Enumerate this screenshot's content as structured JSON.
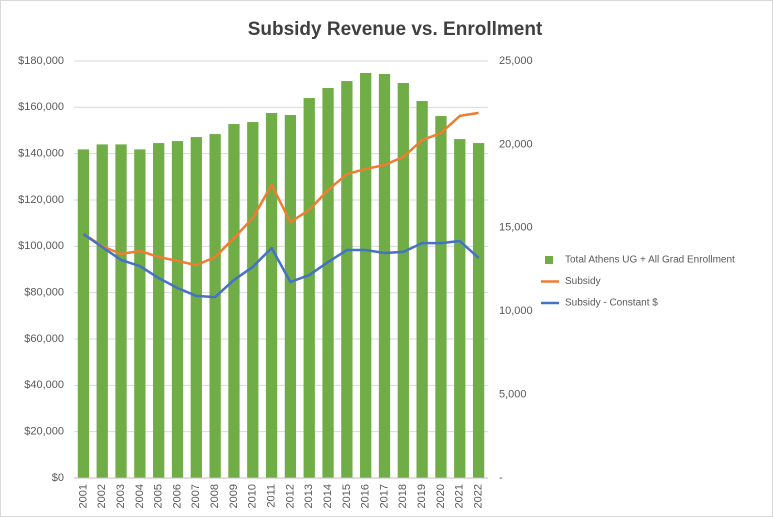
{
  "chart_data": {
    "type": "combo",
    "title": "Subsidy Revenue vs. Enrollment",
    "categories": [
      "2001",
      "2002",
      "2003",
      "2004",
      "2005",
      "2006",
      "2007",
      "2008",
      "2009",
      "2010",
      "2011",
      "2012",
      "2013",
      "2014",
      "2015",
      "2016",
      "2017",
      "2018",
      "2019",
      "2020",
      "2021",
      "2022"
    ],
    "series": [
      {
        "name": "Total Athens UG + All Grad Enrollment",
        "type": "bar",
        "axis": "y2",
        "color": "#70ad47",
        "values": [
          19700,
          20000,
          20000,
          19700,
          20080,
          20200,
          20440,
          20620,
          21220,
          21340,
          21880,
          21760,
          22780,
          23380,
          23800,
          24280,
          24220,
          23680,
          22600,
          21700,
          20320,
          20080
        ]
      },
      {
        "name": "Subsidy",
        "type": "line",
        "color": "#ed7d31",
        "values": [
          105300,
          100100,
          96700,
          98000,
          95400,
          93700,
          91900,
          95400,
          103600,
          112200,
          126500,
          110500,
          115700,
          124300,
          131200,
          133400,
          135100,
          138600,
          145900,
          148900,
          156300,
          157600
        ]
      },
      {
        "name": "Subsidy - Constant $",
        "type": "line",
        "color": "#4472c4",
        "values": [
          105300,
          99700,
          94100,
          91500,
          86300,
          82000,
          78600,
          78100,
          85500,
          91100,
          99300,
          84600,
          87600,
          93200,
          98400,
          98400,
          97100,
          97600,
          101400,
          101400,
          102300,
          95000
        ]
      }
    ],
    "ylim": [
      0,
      180000
    ],
    "yticks": [
      {
        "value": 0,
        "label": "$0"
      },
      {
        "value": 20000,
        "label": "$20,000"
      },
      {
        "value": 40000,
        "label": "$40,000"
      },
      {
        "value": 60000,
        "label": "$60,000"
      },
      {
        "value": 80000,
        "label": "$80,000"
      },
      {
        "value": 100000,
        "label": "$100,000"
      },
      {
        "value": 120000,
        "label": "$120,000"
      },
      {
        "value": 140000,
        "label": "$140,000"
      },
      {
        "value": 160000,
        "label": "$160,000"
      },
      {
        "value": 180000,
        "label": "$180,000"
      }
    ],
    "y2lim": [
      0,
      25000
    ],
    "y2ticks": [
      {
        "value": 0,
        "label": "-"
      },
      {
        "value": 5000,
        "label": "5,000"
      },
      {
        "value": 10000,
        "label": "10,000"
      },
      {
        "value": 15000,
        "label": "15,000"
      },
      {
        "value": 20000,
        "label": "20,000"
      },
      {
        "value": 25000,
        "label": "25,000"
      }
    ],
    "grid": true,
    "legend": "right"
  }
}
